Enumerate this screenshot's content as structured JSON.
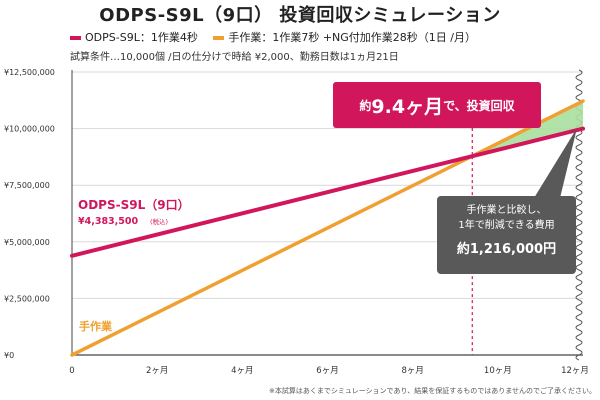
{
  "header": {
    "title": "ODPS-S9L（9口） 投資回収シミュレーション",
    "conditions": "試算条件…10,000個 /日の仕分けで時給 ¥2,000、勤務日数は1ヵ月21日"
  },
  "legend": [
    {
      "label": "ODPS-S9L：1作業4秒",
      "color": "#d1165b"
    },
    {
      "label": "手作業：1作業7秒 +NG付加作業28秒（1日 /月）",
      "color": "#f0a030"
    }
  ],
  "callout_payback": {
    "prefix": "約",
    "months": "9.4ヶ月",
    "suffix": "で、投資回収"
  },
  "callout_savings": {
    "line1": "手作業と比較し、",
    "line2": "1年で削減できる費用",
    "amount": "約1,216,000円"
  },
  "series_labels": {
    "odps_name": "ODPS-S9L（9口）",
    "odps_price": "¥4,383,500",
    "odps_tax": "(税込)",
    "manual_name": "手作業"
  },
  "footnote": "※本試算はあくまでシミュレーションであり、結果を保証するものではありませんのでご了承ください。",
  "colors": {
    "odps": "#d1165b",
    "manual": "#f0a030",
    "savings_fill": "#a8e0a0",
    "grid": "#d9d9d9",
    "payback_marker": "#d1165b"
  },
  "chart_data": {
    "type": "line",
    "title": "ODPS-S9L（9口） 投資回収シミュレーション",
    "xlabel": "",
    "ylabel": "",
    "x": [
      0,
      12
    ],
    "x_ticks": [
      0,
      2,
      4,
      6,
      8,
      10,
      12
    ],
    "x_tick_labels": [
      "0",
      "2ヶ月",
      "4ヶ月",
      "6ヶ月",
      "8ヶ月",
      "10ヶ月",
      "12ヶ月"
    ],
    "y_ticks": [
      0,
      2500000,
      5000000,
      7500000,
      10000000,
      12500000
    ],
    "y_tick_labels": [
      "¥0",
      "¥2,500,000",
      "¥5,000,000",
      "¥7,500,000",
      "¥10,000,000",
      "¥12,500,000"
    ],
    "ylim": [
      0,
      12500000
    ],
    "xlim": [
      0,
      12
    ],
    "payback_month": 9.4,
    "series": [
      {
        "name": "ODPS-S9L：1作業4秒",
        "x": [
          0,
          12
        ],
        "values": [
          4383500,
          10000000
        ]
      },
      {
        "name": "手作業：1作業7秒 +NG付加作業28秒（1日 /月）",
        "x": [
          0,
          12
        ],
        "values": [
          0,
          11216000
        ]
      }
    ],
    "savings_amount": 1216000
  }
}
